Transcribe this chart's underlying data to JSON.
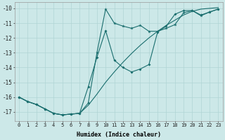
{
  "xlabel": "Humidex (Indice chaleur)",
  "xlim": [
    -0.5,
    23.5
  ],
  "ylim": [
    -17.6,
    -9.6
  ],
  "yticks": [
    -17,
    -16,
    -15,
    -14,
    -13,
    -12,
    -11,
    -10
  ],
  "xticks": [
    0,
    1,
    2,
    3,
    4,
    5,
    6,
    7,
    8,
    9,
    10,
    11,
    12,
    13,
    14,
    15,
    16,
    17,
    18,
    19,
    20,
    21,
    22,
    23
  ],
  "background_color": "#cce8e8",
  "grid_color": "#b0d4d4",
  "line_color": "#1a6e6e",
  "line1_x": [
    0,
    1,
    2,
    3,
    4,
    5,
    6,
    7,
    8,
    9,
    10,
    11,
    12,
    13,
    14,
    15,
    16,
    17,
    18,
    19,
    20,
    21,
    22,
    23
  ],
  "line1_y": [
    -16.0,
    -16.3,
    -16.5,
    -16.8,
    -17.1,
    -17.2,
    -17.15,
    -17.1,
    -16.4,
    -13.0,
    -10.05,
    -11.0,
    -11.2,
    -11.35,
    -11.15,
    -11.55,
    -11.55,
    -11.35,
    -11.1,
    -10.3,
    -10.15,
    -10.5,
    -10.25,
    -10.05
  ],
  "line2_x": [
    0,
    1,
    2,
    3,
    4,
    5,
    6,
    7,
    8,
    9,
    10,
    11,
    12,
    13,
    14,
    15,
    16,
    17,
    18,
    19,
    20,
    21,
    22,
    23
  ],
  "line2_y": [
    -16.0,
    -16.3,
    -16.5,
    -16.8,
    -17.1,
    -17.2,
    -17.15,
    -17.1,
    -16.55,
    -15.8,
    -15.0,
    -14.3,
    -13.65,
    -13.05,
    -12.5,
    -12.0,
    -11.55,
    -11.15,
    -10.8,
    -10.45,
    -10.2,
    -10.05,
    -10.0,
    -9.95
  ],
  "line3_x": [
    0,
    1,
    2,
    3,
    4,
    5,
    6,
    7,
    8,
    9,
    10,
    11,
    12,
    13,
    14,
    15,
    16,
    17,
    18,
    19,
    20,
    21,
    22,
    23
  ],
  "line3_y": [
    -16.0,
    -16.3,
    -16.5,
    -16.8,
    -17.1,
    -17.2,
    -17.15,
    -17.1,
    -15.3,
    -13.3,
    -11.5,
    -13.5,
    -14.0,
    -14.3,
    -14.1,
    -13.8,
    -11.6,
    -11.2,
    -10.4,
    -10.15,
    -10.15,
    -10.45,
    -10.25,
    -10.05
  ]
}
